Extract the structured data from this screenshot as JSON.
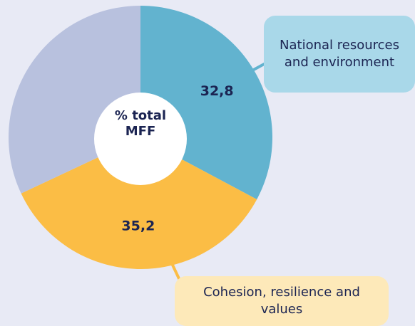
{
  "chart_data": {
    "type": "pie",
    "center_label": "% total MFF",
    "categories": [
      "National resources and environment",
      "Cohesion, resilience and values",
      null
    ],
    "values": [
      32.8,
      35.2,
      32.0
    ],
    "value_labels": [
      "32,8",
      "35,2",
      null
    ],
    "colors": [
      "#62b3cf",
      "#fbbd45",
      "#b8c1de"
    ],
    "callout_colors": [
      "#a9d8e9",
      "#fde9b9"
    ],
    "start_angle": 0,
    "clockwise": true
  }
}
